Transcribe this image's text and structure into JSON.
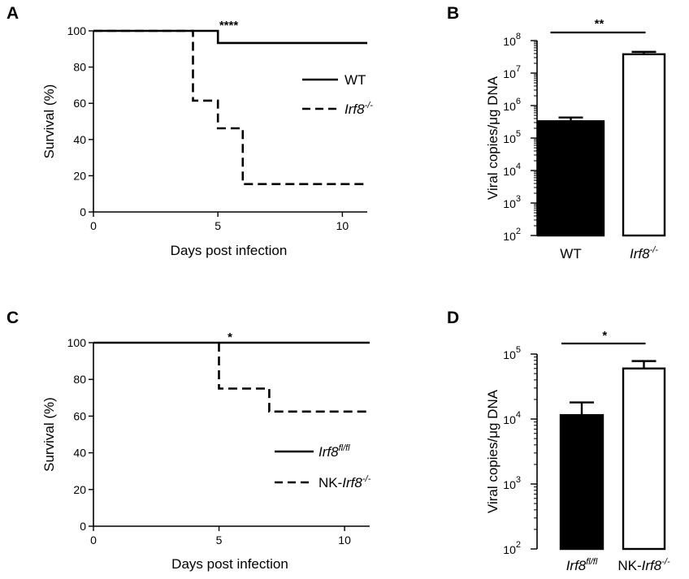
{
  "chart_data": [
    {
      "panel": "A",
      "type": "line",
      "xlabel": "Days post infection",
      "ylabel": "Survival (%)",
      "xlim": [
        0,
        11
      ],
      "ylim": [
        0,
        100
      ],
      "xticks": [
        0,
        5,
        10
      ],
      "yticks": [
        0,
        20,
        40,
        60,
        80,
        100
      ],
      "significance": "****",
      "legend_position": "right",
      "series": [
        {
          "name": "WT",
          "sup": "",
          "line_style": "solid",
          "points": [
            [
              0,
              100
            ],
            [
              5,
              100
            ],
            [
              5,
              93.3
            ],
            [
              11,
              93.3
            ]
          ]
        },
        {
          "name": "Irf8",
          "sup": "-/-",
          "line_style": "dashed",
          "points": [
            [
              0,
              100
            ],
            [
              4,
              100
            ],
            [
              4,
              61.5
            ],
            [
              5,
              61.5
            ],
            [
              5,
              46.2
            ],
            [
              6,
              46.2
            ],
            [
              6,
              15.4
            ],
            [
              11,
              15.4
            ]
          ]
        }
      ]
    },
    {
      "panel": "B",
      "type": "bar",
      "ylabel": "Viral copies/μg DNA",
      "yscale": "log",
      "ylim": [
        100,
        100000000
      ],
      "yticks": [
        {
          "value": 100,
          "base": "10",
          "exp": "2"
        },
        {
          "value": 1000,
          "base": "10",
          "exp": "3"
        },
        {
          "value": 10000,
          "base": "10",
          "exp": "4"
        },
        {
          "value": 100000,
          "base": "10",
          "exp": "5"
        },
        {
          "value": 1000000,
          "base": "10",
          "exp": "6"
        },
        {
          "value": 10000000,
          "base": "10",
          "exp": "7"
        },
        {
          "value": 100000000,
          "base": "10",
          "exp": "8"
        }
      ],
      "categories": [
        {
          "prefix": "",
          "name": "WT",
          "sup": "",
          "fill": "#000000"
        },
        {
          "prefix": "",
          "name": "Irf8",
          "sup": "-/-",
          "fill": "#ffffff"
        }
      ],
      "values": [
        330000,
        38000000
      ],
      "error_upper": [
        430000,
        45000000
      ],
      "significance": "**"
    },
    {
      "panel": "C",
      "type": "line",
      "xlabel": "Days post infection",
      "ylabel": "Survival (%)",
      "xlim": [
        0,
        11
      ],
      "ylim": [
        0,
        100
      ],
      "xticks": [
        0,
        5,
        10
      ],
      "yticks": [
        0,
        20,
        40,
        60,
        80,
        100
      ],
      "significance": "*",
      "legend_position": "bottom-right",
      "series": [
        {
          "prefix": "",
          "name": "Irf8",
          "sup": "fl/fl",
          "line_style": "solid",
          "points": [
            [
              0,
              100
            ],
            [
              11,
              100
            ]
          ]
        },
        {
          "prefix": "NK-",
          "name": "Irf8",
          "sup": "-/-",
          "line_style": "dashed",
          "points": [
            [
              5,
              100
            ],
            [
              5,
              75
            ],
            [
              7,
              75
            ],
            [
              7,
              62.5
            ],
            [
              11,
              62.5
            ]
          ]
        }
      ]
    },
    {
      "panel": "D",
      "type": "bar",
      "ylabel": "Viral copies/μg DNA",
      "yscale": "log",
      "ylim": [
        100,
        100000
      ],
      "yticks": [
        {
          "value": 100,
          "base": "10",
          "exp": "2"
        },
        {
          "value": 1000,
          "base": "10",
          "exp": "3"
        },
        {
          "value": 10000,
          "base": "10",
          "exp": "4"
        },
        {
          "value": 100000,
          "base": "10",
          "exp": "5"
        }
      ],
      "categories": [
        {
          "prefix": "",
          "name": "Irf8",
          "sup": "fl/fl",
          "fill": "#000000"
        },
        {
          "prefix": "NK-",
          "name": "Irf8",
          "sup": "-/-",
          "fill": "#ffffff"
        }
      ],
      "values": [
        11500,
        60000
      ],
      "error_upper": [
        18000,
        78000
      ],
      "significance": "*"
    }
  ]
}
